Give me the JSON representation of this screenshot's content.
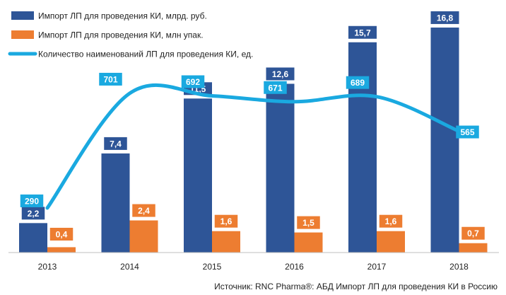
{
  "chart_data": {
    "type": "bar",
    "categories": [
      "2013",
      "2014",
      "2015",
      "2016",
      "2017",
      "2018"
    ],
    "series": [
      {
        "name": "Импорт ЛП для проведения КИ, млрд. руб.",
        "kind": "bar",
        "values": [
          2.2,
          7.4,
          11.5,
          12.6,
          15.7,
          16.8
        ],
        "labels": [
          "2,2",
          "7,4",
          "11,5",
          "12,6",
          "15,7",
          "16,8"
        ],
        "color": "#2e5597"
      },
      {
        "name": "Импорт ЛП для проведения КИ, млн упак.",
        "kind": "bar",
        "values": [
          0.4,
          2.4,
          1.6,
          1.5,
          1.6,
          0.7
        ],
        "labels": [
          "0,4",
          "2,4",
          "1,6",
          "1,5",
          "1,6",
          "0,7"
        ],
        "color": "#ed7d31"
      },
      {
        "name": "Количество наименований ЛП для проведения КИ, ед.",
        "kind": "line",
        "values": [
          290,
          701,
          692,
          671,
          689,
          565
        ],
        "labels": [
          "290",
          "701",
          "692",
          "671",
          "689",
          "565"
        ],
        "color": "#1aa9e0"
      }
    ],
    "bar_axis_max": 17.8,
    "line_axis_range": [
      130,
      985
    ],
    "source": "Источник: RNC Pharma®: АБД Импорт ЛП для проведения КИ в Россию"
  }
}
